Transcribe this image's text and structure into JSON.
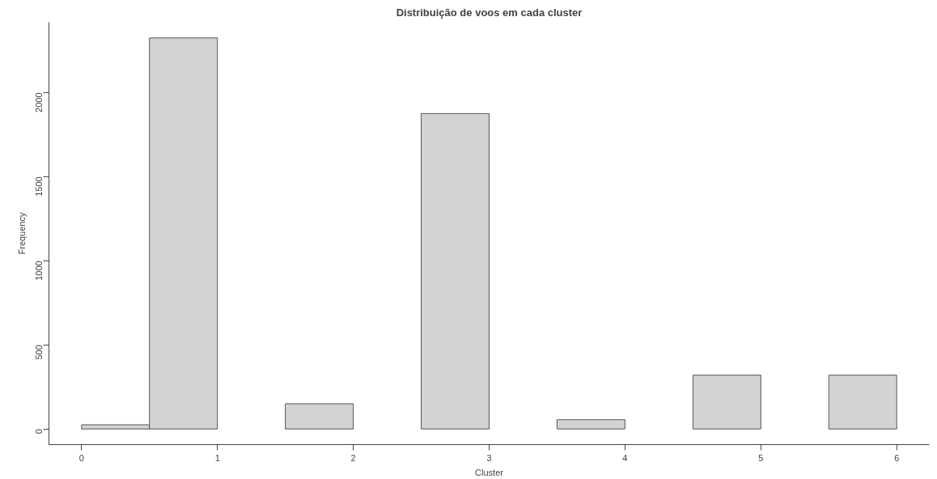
{
  "chart_data": {
    "type": "histogram",
    "title": "Distribuição de voos em cada cluster",
    "xlabel": "Cluster",
    "ylabel": "Frequency",
    "bins": [
      0,
      0.5,
      1,
      1.5,
      2,
      2.5,
      3,
      3.5,
      4,
      4.5,
      5,
      5.5,
      6
    ],
    "values": [
      25,
      2325,
      0,
      150,
      0,
      1875,
      0,
      55,
      0,
      320,
      0,
      320
    ],
    "color": "#d3d3d3",
    "xlim": [
      -0.24,
      6.24
    ],
    "ylim": [
      -93,
      2418
    ],
    "xticks": [
      0,
      1,
      2,
      3,
      4,
      5,
      6
    ],
    "yticks": [
      0,
      500,
      1000,
      1500,
      2000
    ],
    "grid": false
  }
}
